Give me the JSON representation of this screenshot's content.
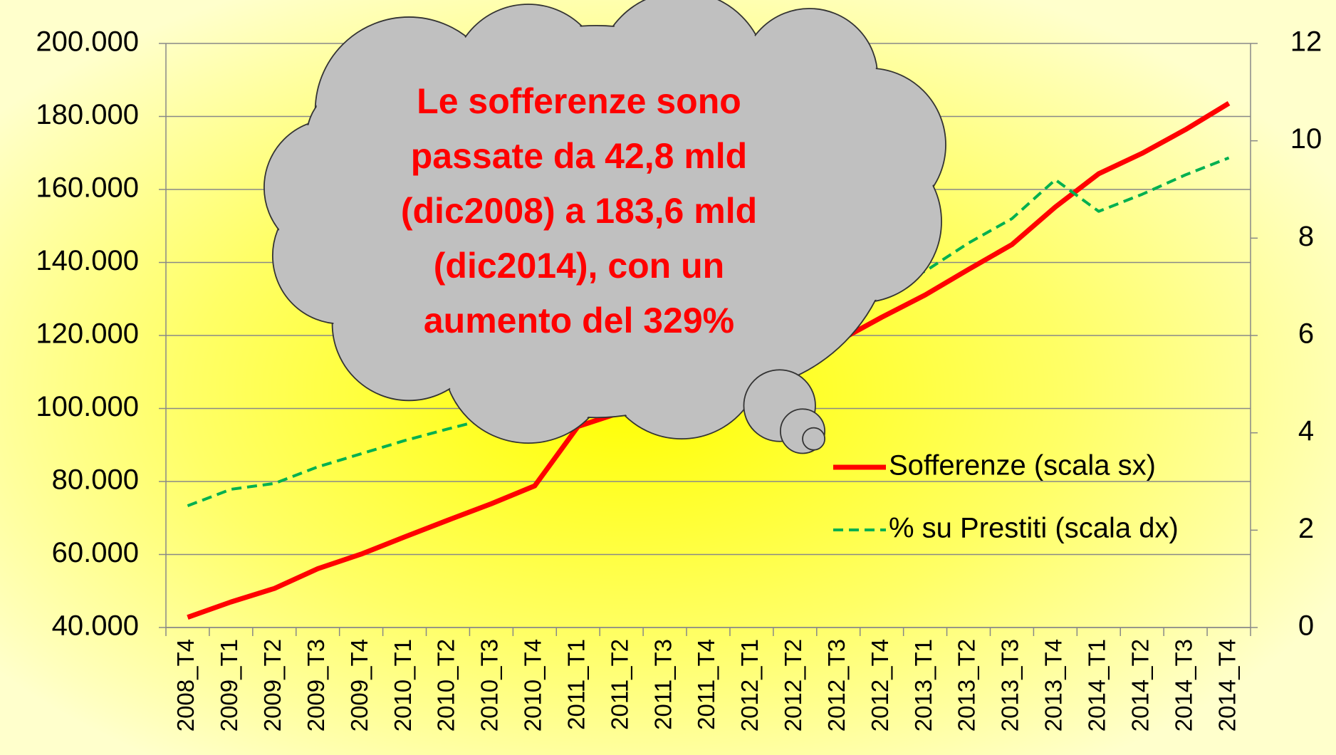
{
  "chart_data": {
    "type": "line",
    "categories": [
      "2008_T4",
      "2009_T1",
      "2009_T2",
      "2009_T3",
      "2009_T4",
      "2010_T1",
      "2010_T2",
      "2010_T3",
      "2010_T4",
      "2011_T1",
      "2011_T2",
      "2011_T3",
      "2011_T4",
      "2012_T1",
      "2012_T2",
      "2012_T3",
      "2012_T4",
      "2013_T1",
      "2013_T2",
      "2013_T3",
      "2013_T4",
      "2014_T1",
      "2014_T2",
      "2014_T3",
      "2014_T4"
    ],
    "series": [
      {
        "name": "Sofferenze (scala sx)",
        "color": "#ff0000",
        "dash": "solid",
        "values": [
          42800,
          47000,
          50700,
          56100,
          60100,
          64800,
          69400,
          73900,
          78800,
          95100,
          99000,
          104000,
          108000,
          108500,
          112000,
          118500,
          125000,
          131100,
          138100,
          144900,
          155200,
          164300,
          169900,
          176400,
          183600
        ]
      },
      {
        "name": "% su Prestiti (scala dx)",
        "color": "#00b050",
        "dash": "dashed",
        "axis": "y2",
        "values": [
          2.5,
          2.84,
          2.96,
          3.3,
          3.57,
          3.84,
          4.08,
          4.31,
          4.48,
          4.7,
          4.9,
          5.1,
          5.3,
          5.6,
          6.0,
          6.5,
          7.0,
          7.32,
          7.9,
          8.4,
          9.2,
          8.55,
          8.9,
          9.3,
          9.65
        ]
      }
    ],
    "ylim": [
      40000,
      200000
    ],
    "yticks": [
      {
        "value": 40000,
        "label": "40.000"
      },
      {
        "value": 60000,
        "label": "60.000"
      },
      {
        "value": 80000,
        "label": "80.000"
      },
      {
        "value": 100000,
        "label": "100.000"
      },
      {
        "value": 120000,
        "label": "120.000"
      },
      {
        "value": 140000,
        "label": "140.000"
      },
      {
        "value": 160000,
        "label": "160.000"
      },
      {
        "value": 180000,
        "label": "180.000"
      },
      {
        "value": 200000,
        "label": "200.000"
      }
    ],
    "y2lim": [
      0,
      12
    ],
    "y2ticks": [
      0,
      2,
      4,
      6,
      8,
      10,
      12
    ],
    "grid": true,
    "annotation": [
      "Le sofferenze sono",
      "passate da 42,8 mld",
      "(dic2008) a 183,6 mld",
      "(dic2014), con un",
      "aumento del 329%"
    ]
  }
}
